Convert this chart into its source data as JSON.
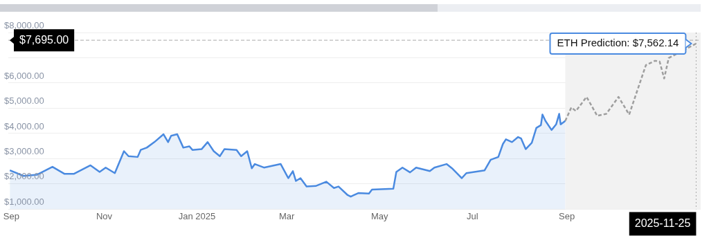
{
  "chart_data": {
    "type": "area",
    "xlim": [
      "2024-08-30",
      "2025-11-28"
    ],
    "ylim": [
      1000,
      8000
    ],
    "xticks": [
      {
        "value": "2024-09-01",
        "label": "Sep"
      },
      {
        "value": "2024-11-01",
        "label": "Nov"
      },
      {
        "value": "2025-01-01",
        "label": "Jan 2025"
      },
      {
        "value": "2025-03-01",
        "label": "Mar"
      },
      {
        "value": "2025-05-01",
        "label": "May"
      },
      {
        "value": "2025-07-01",
        "label": "Jul"
      },
      {
        "value": "2025-09-01",
        "label": "Sep"
      }
    ],
    "yticks": [
      {
        "value": 1000,
        "label": "$1,000.00"
      },
      {
        "value": 2000,
        "label": "$2,000.00"
      },
      {
        "value": 3000,
        "label": "$3,000.00"
      },
      {
        "value": 4000,
        "label": "$4,000.00"
      },
      {
        "value": 5000,
        "label": "$5,000.00"
      },
      {
        "value": 6000,
        "label": "$6,000.00"
      },
      {
        "value": 7000,
        "label": null
      },
      {
        "value": 8000,
        "label": "$8,000.00"
      }
    ],
    "grid": "y",
    "marker": "none",
    "series": [
      {
        "color": "#4a8ae0",
        "x": [
          "2024-08-31",
          "2024-09-09",
          "2024-09-18",
          "2024-09-28",
          "2024-10-06",
          "2024-10-12",
          "2024-10-23",
          "2024-10-29",
          "2024-11-02",
          "2024-11-08",
          "2024-11-14",
          "2024-11-17",
          "2024-11-23",
          "2024-11-25",
          "2024-11-29",
          "2024-12-04",
          "2024-12-10",
          "2024-12-13",
          "2024-12-15",
          "2024-12-19",
          "2024-12-23",
          "2024-12-27",
          "2024-12-29",
          "2025-01-04",
          "2025-01-08",
          "2025-01-12",
          "2025-01-16",
          "2025-01-19",
          "2025-01-27",
          "2025-01-30",
          "2025-02-03",
          "2025-02-06",
          "2025-02-08",
          "2025-02-14",
          "2025-02-25",
          "2025-03-02",
          "2025-03-05",
          "2025-03-07",
          "2025-03-10",
          "2025-03-14",
          "2025-03-20",
          "2025-03-27",
          "2025-04-01",
          "2025-04-04",
          "2025-04-10",
          "2025-04-12",
          "2025-04-17",
          "2025-04-24",
          "2025-04-26",
          "2025-05-10",
          "2025-05-12",
          "2025-05-16",
          "2025-05-21",
          "2025-05-25",
          "2025-06-03",
          "2025-06-06",
          "2025-06-14",
          "2025-06-18",
          "2025-06-24",
          "2025-06-27",
          "2025-07-09",
          "2025-07-13",
          "2025-07-18",
          "2025-07-21",
          "2025-07-23",
          "2025-07-27",
          "2025-07-31",
          "2025-08-02",
          "2025-08-05",
          "2025-08-09",
          "2025-08-12",
          "2025-08-15",
          "2025-08-16",
          "2025-08-18",
          "2025-08-22",
          "2025-08-25",
          "2025-08-27",
          "2025-08-28",
          "2025-08-31"
        ],
        "values": [
          2540,
          2320,
          2370,
          2680,
          2400,
          2400,
          2740,
          2480,
          2650,
          2430,
          3300,
          3100,
          3070,
          3350,
          3440,
          3660,
          3970,
          3660,
          3910,
          3970,
          3440,
          3490,
          3350,
          3380,
          3660,
          3300,
          3100,
          3380,
          3350,
          3100,
          3300,
          2620,
          2790,
          2650,
          2790,
          2230,
          2510,
          2120,
          2230,
          1900,
          1920,
          2090,
          1840,
          1900,
          1560,
          1500,
          1640,
          1620,
          1780,
          1810,
          2480,
          2650,
          2460,
          2650,
          2510,
          2650,
          2790,
          2600,
          2230,
          2430,
          2540,
          2960,
          3070,
          3580,
          3770,
          3660,
          3860,
          3800,
          3380,
          3630,
          4220,
          4330,
          4750,
          4500,
          4140,
          4360,
          4780,
          4360,
          4500
        ]
      },
      {
        "type": "line",
        "color": "#9e9e9e",
        "line_style": "dashed",
        "x": [
          "2025-08-31",
          "2025-09-04",
          "2025-09-07",
          "2025-09-14",
          "2025-09-21",
          "2025-09-27",
          "2025-10-05",
          "2025-10-12",
          "2025-10-18",
          "2025-10-23",
          "2025-10-29",
          "2025-11-01",
          "2025-11-04",
          "2025-11-07",
          "2025-11-25"
        ],
        "values": [
          4500,
          5030,
          4890,
          5450,
          4700,
          4780,
          5450,
          4750,
          5820,
          6710,
          6880,
          6850,
          6180,
          6990,
          7562.14
        ]
      }
    ],
    "bands": [
      {
        "axis": "x",
        "from": "2025-08-31",
        "to": "2025-11-28",
        "color": "#f2f2f2"
      }
    ],
    "ref_lines": [
      {
        "axis": "y",
        "value": 7695,
        "label": "$7,695.00",
        "color": "#aaaaaa",
        "line_style": "dashed"
      },
      {
        "axis": "x",
        "value": "2025-11-25",
        "label": "2025-11-25",
        "color": "#aaaaaa",
        "line_style": "dotted"
      }
    ],
    "annotations": [
      {
        "text": "ETH Prediction: $7,562.14",
        "x": "2025-11-25",
        "y": 7562.14
      }
    ]
  }
}
